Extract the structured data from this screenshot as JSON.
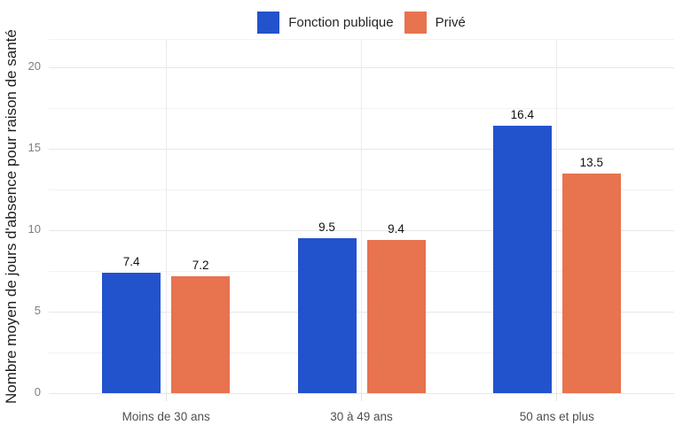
{
  "chart_data": {
    "type": "bar",
    "title": "",
    "ylabel": "Nombre moyen de jours d'absence pour raison de santé",
    "xlabel": "",
    "categories": [
      "Moins de 30 ans",
      "30 à 49 ans",
      "50 ans et plus"
    ],
    "series": [
      {
        "name": "Fonction publique",
        "color": "#2352CD",
        "values": [
          7.4,
          9.5,
          16.4
        ]
      },
      {
        "name": "Privé",
        "color": "#E7734F",
        "values": [
          7.2,
          9.4,
          13.5
        ]
      }
    ],
    "ylim": [
      0,
      21.7
    ],
    "yticks": [
      0,
      5,
      10,
      15,
      20
    ],
    "minor_yticks": [
      2.5,
      7.5,
      12.5,
      17.5
    ],
    "grid": true,
    "legend_position": "top",
    "value_labels_shown": true
  },
  "styles": {
    "background": "#FFFFFF",
    "grid_major_color": "#E7E7E7",
    "grid_minor_color": "#F2F2F2",
    "vertical_grid_color": "#EBEBEB",
    "y_tick_label_color": "#7E7E7E",
    "category_label_color": "#4F4F4F",
    "value_label_color": "#111111"
  }
}
